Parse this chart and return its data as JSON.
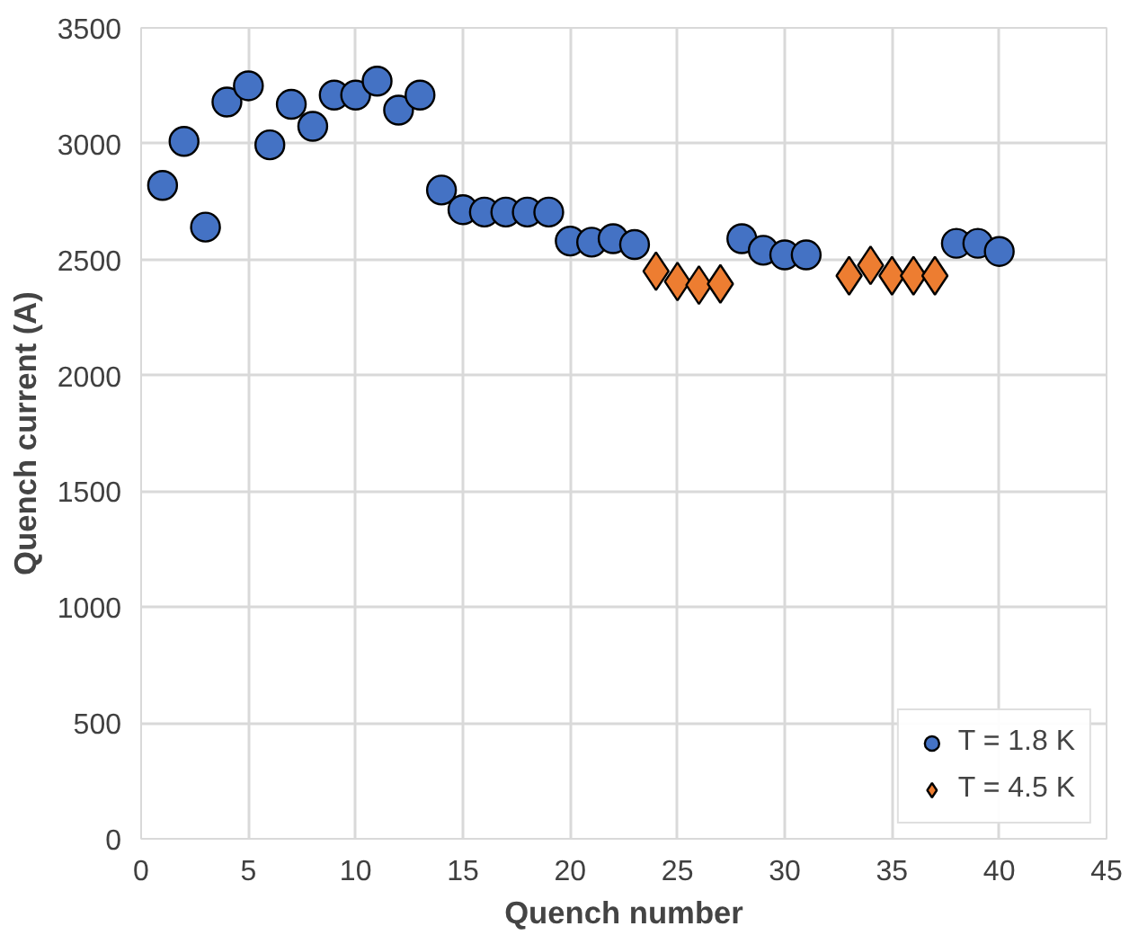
{
  "chart_data": {
    "type": "scatter",
    "xlabel": "Quench number",
    "ylabel": "Quench current (A)",
    "xlim": [
      0,
      45
    ],
    "xticks": [
      0,
      5,
      10,
      15,
      20,
      25,
      30,
      35,
      40,
      45
    ],
    "ylim": [
      0,
      3500
    ],
    "yticks": [
      0,
      500,
      1000,
      1500,
      2000,
      2500,
      3000,
      3500
    ],
    "grid": true,
    "legend": "bottom right",
    "series": [
      {
        "name": "T = 1.8 K",
        "color": "#4472c4",
        "marker": "circle",
        "x": [
          1,
          2,
          3,
          4,
          5,
          6,
          7,
          8,
          9,
          10,
          11,
          12,
          13,
          14,
          15,
          16,
          17,
          18,
          19,
          20,
          21,
          22,
          23,
          28,
          29,
          30,
          31,
          38,
          39,
          40
        ],
        "values": [
          2820,
          3010,
          2640,
          3180,
          3250,
          2995,
          3170,
          3075,
          3210,
          3210,
          3270,
          3145,
          3210,
          2800,
          2715,
          2705,
          2705,
          2705,
          2705,
          2580,
          2575,
          2590,
          2565,
          2590,
          2540,
          2520,
          2520,
          2570,
          2570,
          2535
        ]
      },
      {
        "name": "T = 4.5 K",
        "color": "#ed7d31",
        "marker": "diamond",
        "x": [
          24,
          25,
          26,
          27,
          33,
          34,
          35,
          36,
          37
        ],
        "values": [
          2450,
          2405,
          2390,
          2395,
          2430,
          2475,
          2430,
          2430,
          2430
        ]
      }
    ]
  }
}
